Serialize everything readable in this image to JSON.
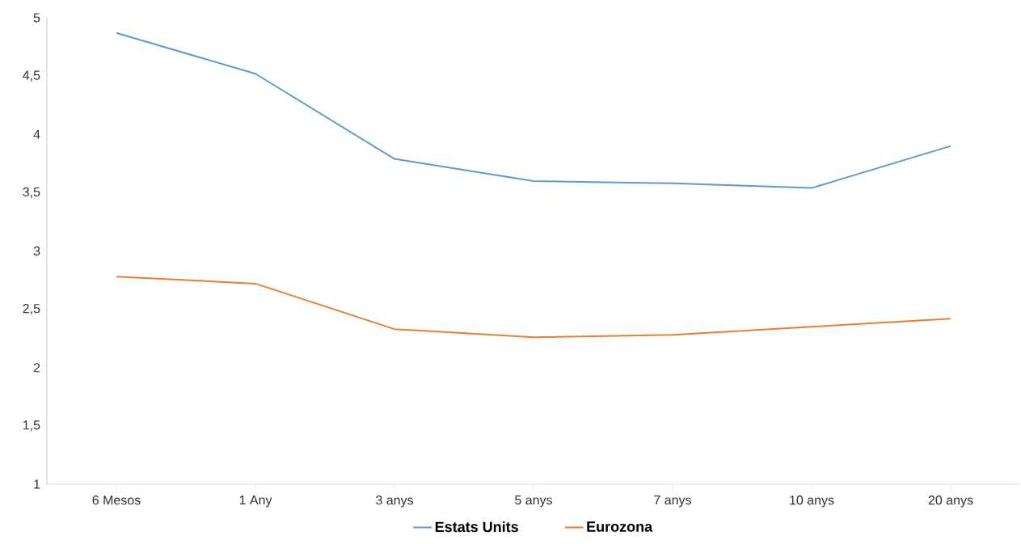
{
  "chart_data": {
    "type": "line",
    "categories": [
      "6 Mesos",
      "1 Any",
      "3 anys",
      "5 anys",
      "7 anys",
      "10 anys",
      "20 anys"
    ],
    "series": [
      {
        "name": "Estats Units",
        "color": "#5b9bd5",
        "values": [
          4.87,
          4.52,
          3.79,
          3.6,
          3.58,
          3.54,
          3.9
        ]
      },
      {
        "name": "Eurozona",
        "color": "#ed7d31",
        "values": [
          2.78,
          2.72,
          2.33,
          2.26,
          2.28,
          2.35,
          2.42
        ]
      }
    ],
    "ylim": [
      1,
      5
    ],
    "yticks": [
      1,
      {
        "value": 1.5,
        "label": "1,5"
      },
      2,
      {
        "value": 2.5,
        "label": "2,5"
      },
      3,
      {
        "value": 3.5,
        "label": "3,5"
      },
      4,
      {
        "value": 4.5,
        "label": "4,5"
      },
      5
    ],
    "grid": false,
    "legend": "bottom",
    "marker": "none",
    "line_style": "solid"
  }
}
